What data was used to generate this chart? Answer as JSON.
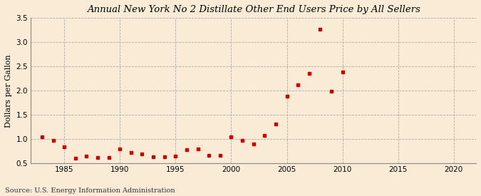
{
  "title": "Annual New York No 2 Distillate Other End Users Price by All Sellers",
  "ylabel": "Dollars per Gallon",
  "source": "Source: U.S. Energy Information Administration",
  "background_color": "#faebd7",
  "marker_color": "#cc0000",
  "xlim": [
    1982,
    2022
  ],
  "ylim": [
    0.5,
    3.5
  ],
  "xticks": [
    1985,
    1990,
    1995,
    2000,
    2005,
    2010,
    2015,
    2020
  ],
  "yticks": [
    0.5,
    1.0,
    1.5,
    2.0,
    2.5,
    3.0,
    3.5
  ],
  "years": [
    1983,
    1984,
    1985,
    1986,
    1987,
    1988,
    1989,
    1990,
    1991,
    1992,
    1993,
    1994,
    1995,
    1996,
    1997,
    1998,
    1999,
    2000,
    2001,
    2002,
    2003,
    2004,
    2005,
    2006,
    2007,
    2008,
    2009,
    2010
  ],
  "values": [
    1.05,
    0.97,
    0.84,
    0.6,
    0.65,
    0.62,
    0.62,
    0.79,
    0.73,
    0.69,
    0.64,
    0.63,
    0.65,
    0.78,
    0.8,
    0.66,
    0.67,
    1.05,
    0.97,
    0.9,
    1.08,
    1.31,
    1.88,
    2.12,
    2.35,
    3.27,
    1.99,
    2.38
  ]
}
